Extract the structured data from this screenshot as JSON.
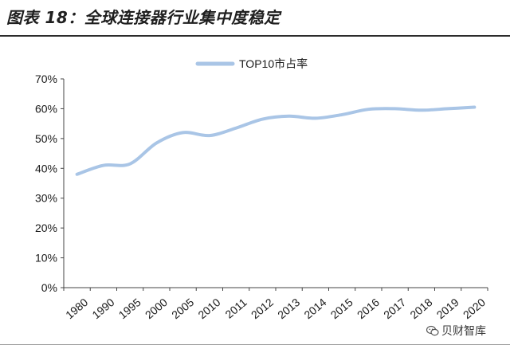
{
  "header": {
    "title": "图表 18：全球连接器行业集中度稳定"
  },
  "watermark": {
    "text": "贝财智库",
    "icon": "wechat-icon"
  },
  "chart_data": {
    "type": "line",
    "categories": [
      "1980",
      "1990",
      "1995",
      "2000",
      "2005",
      "2010",
      "2011",
      "2012",
      "2013",
      "2014",
      "2015",
      "2016",
      "2017",
      "2018",
      "2019",
      "2020"
    ],
    "series": [
      {
        "name": "TOP10市占率",
        "values": [
          38,
          41,
          41.5,
          48.5,
          52,
          51,
          53.5,
          56.5,
          57.5,
          56.8,
          58,
          59.8,
          60,
          59.5,
          60,
          60.5
        ],
        "color": "#a9c5e6"
      }
    ],
    "yticks": [
      "0%",
      "10%",
      "20%",
      "30%",
      "40%",
      "50%",
      "60%",
      "70%"
    ],
    "ylim": [
      0,
      70
    ],
    "grid": false,
    "legend": "top-center"
  }
}
